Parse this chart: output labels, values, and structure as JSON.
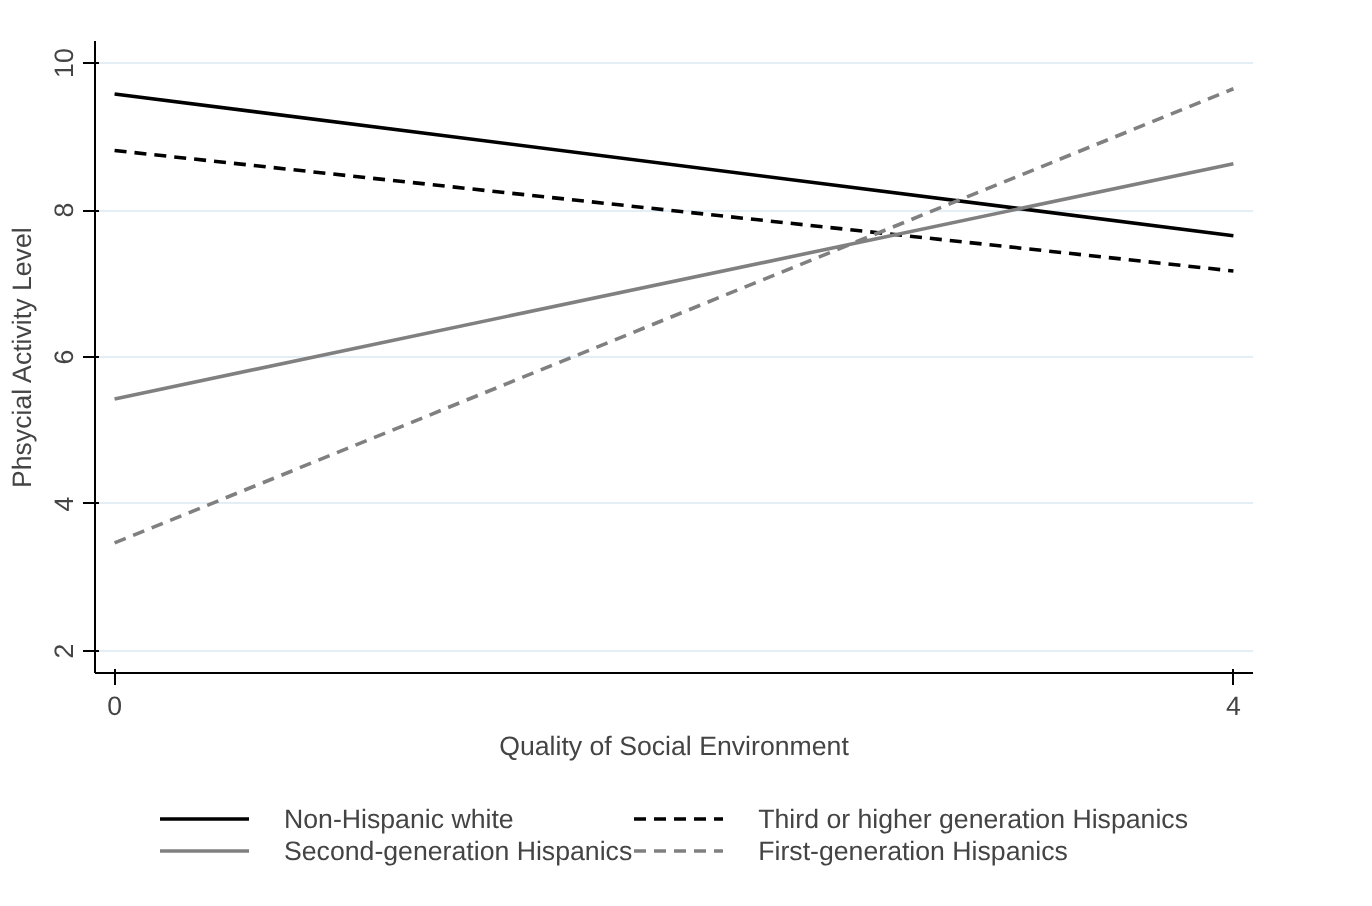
{
  "chart_data": {
    "type": "line",
    "xlabel": "Quality of Social Environment",
    "ylabel": "Phsycial Activity Level",
    "x": [
      0,
      4
    ],
    "xlim": [
      -0.07,
      4.07
    ],
    "xticks": [
      0,
      4
    ],
    "ylim": [
      1.7,
      10.3
    ],
    "yticks": [
      2,
      4,
      6,
      8,
      10
    ],
    "grid": "y",
    "legend": "bottom",
    "marker": "none",
    "series": [
      {
        "name": "Non-Hispanic white",
        "color": "#000000",
        "line_style": "solid",
        "values": [
          9.58,
          7.65
        ]
      },
      {
        "name": "Third or higher generation Hispanics",
        "color": "#000000",
        "line_style": "dashed",
        "values": [
          8.81,
          7.17
        ]
      },
      {
        "name": "Second-generation Hispanics",
        "color": "#808080",
        "line_style": "solid",
        "values": [
          5.43,
          8.63
        ]
      },
      {
        "name": "First-generation Hispanics",
        "color": "#808080",
        "line_style": "dashed",
        "values": [
          3.47,
          9.65
        ]
      }
    ]
  }
}
